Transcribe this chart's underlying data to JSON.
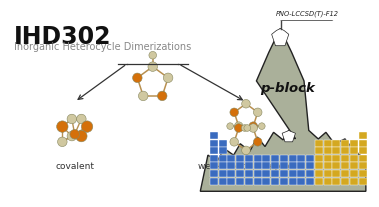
{
  "title": "IHD302",
  "subtitle": "Inorganic Heterocycle Dimerizations",
  "label_covalent": "covalent",
  "label_wda": "weak donor-acceptor",
  "flag_text": "PNO-LCCSD(T)-F12",
  "pblock_text": "p-block",
  "bg_color": "#ffffff",
  "mountain_color": "#aab09a",
  "mountain_outline": "#222222",
  "blue_cell": "#3a6bbf",
  "yellow_cell": "#d4a820",
  "orange_atom": "#d4700a",
  "tan_atom": "#d0c8a0",
  "bond_color": "#b89050"
}
